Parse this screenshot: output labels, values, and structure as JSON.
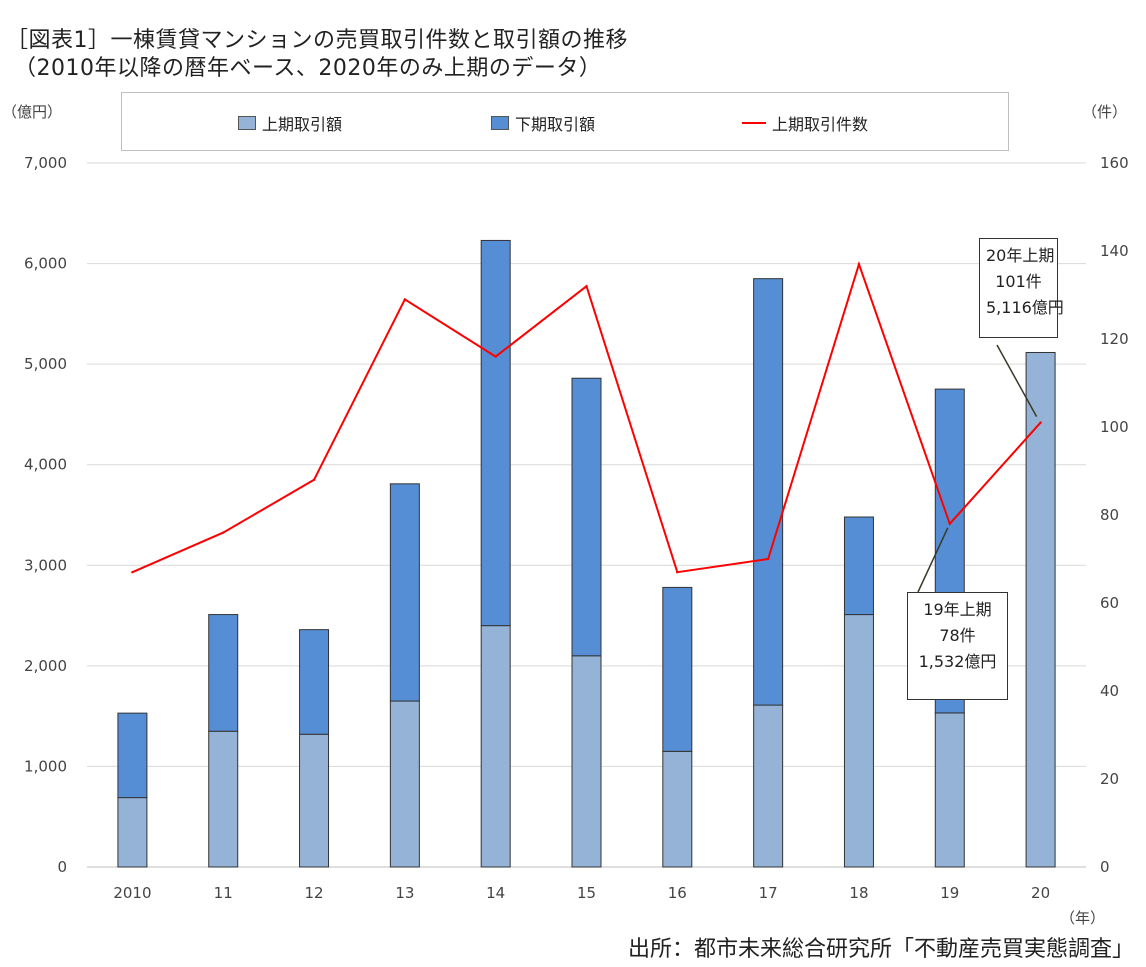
{
  "title_line1": "［図表1］一棟賃貸マンションの売買取引件数と取引額の推移",
  "title_line2": "（2010年以降の暦年ベース、2020年のみ上期のデータ）",
  "unit_left": "（億円）",
  "unit_right": "（件）",
  "unit_x": "（年）",
  "source": "出所：都市未来総合研究所「不動産売買実態調査」",
  "colors": {
    "first_half_amount": "#95b3d7",
    "second_half_amount": "#558ed5",
    "first_half_count": "#ff0000",
    "grid": "#d9d9d9"
  },
  "callouts": {
    "c20": [
      "20年上期",
      "101件",
      "5,116億円"
    ],
    "c19": [
      "19年上期",
      "78件",
      "1,532億円"
    ]
  },
  "chart_data": {
    "type": "bar",
    "stacked": true,
    "categories": [
      "2010",
      "11",
      "12",
      "13",
      "14",
      "15",
      "16",
      "17",
      "18",
      "19",
      "20"
    ],
    "series": [
      {
        "name": "上期取引額",
        "type": "bar",
        "axis": "left",
        "values": [
          690,
          1350,
          1320,
          1650,
          2400,
          2100,
          1150,
          1610,
          2510,
          1532,
          5116
        ]
      },
      {
        "name": "下期取引額",
        "type": "bar",
        "axis": "left",
        "values": [
          840,
          1160,
          1040,
          2160,
          3830,
          2760,
          1630,
          4240,
          970,
          3220,
          0
        ]
      },
      {
        "name": "上期取引件数",
        "type": "line",
        "axis": "right",
        "values": [
          67,
          76,
          88,
          129,
          116,
          132,
          67,
          70,
          137,
          78,
          101
        ]
      }
    ],
    "y_left": {
      "min": 0,
      "max": 7000,
      "ticks": [
        0,
        1000,
        2000,
        3000,
        4000,
        5000,
        6000,
        7000
      ],
      "tick_labels": [
        "0",
        "1,000",
        "2,000",
        "3,000",
        "4,000",
        "5,000",
        "6,000",
        "7,000"
      ]
    },
    "y_right": {
      "min": 0,
      "max": 160,
      "ticks": [
        0,
        20,
        40,
        60,
        80,
        100,
        120,
        140,
        160
      ],
      "tick_labels": [
        "0",
        "20",
        "40",
        "60",
        "80",
        "100",
        "120",
        "140",
        "160"
      ]
    },
    "grid": true,
    "legend": "top"
  }
}
